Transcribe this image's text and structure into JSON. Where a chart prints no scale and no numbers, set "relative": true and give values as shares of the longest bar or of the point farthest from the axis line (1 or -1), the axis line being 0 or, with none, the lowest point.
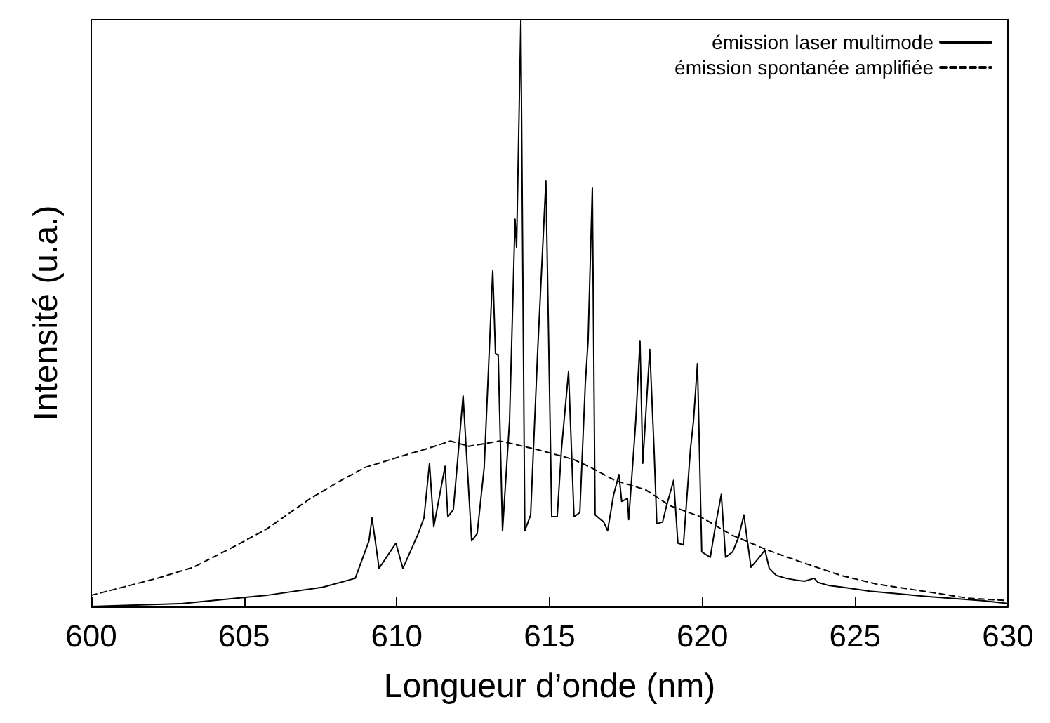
{
  "chart_data": {
    "type": "line",
    "xlabel": "Longueur d’onde (nm)",
    "ylabel": "Intensité (u.a.)",
    "relative": true,
    "xlim": [
      600,
      630
    ],
    "xticks": [
      600,
      605,
      610,
      615,
      620,
      625,
      630
    ],
    "grid": false,
    "legend": "top right",
    "marker": "none",
    "series": [
      {
        "name": "émission laser multimode",
        "color": "#000000",
        "line_style": "solid",
        "x": [
          600,
          603.0,
          605.74,
          607.58,
          608.64,
          609.09,
          609.19,
          609.42,
          609.97,
          610.2,
          610.7,
          610.89,
          611.07,
          611.21,
          611.58,
          611.67,
          611.85,
          611.99,
          612.17,
          612.45,
          612.63,
          612.86,
          613.14,
          613.23,
          613.32,
          613.46,
          613.69,
          613.87,
          613.92,
          614.06,
          614.19,
          614.38,
          614.61,
          614.88,
          615.07,
          615.25,
          615.39,
          615.62,
          615.8,
          615.99,
          616.17,
          616.26,
          616.4,
          616.49,
          616.77,
          616.9,
          617.09,
          617.27,
          617.36,
          617.55,
          617.59,
          617.78,
          617.82,
          617.96,
          618.05,
          618.28,
          618.42,
          618.51,
          618.7,
          618.83,
          619.06,
          619.2,
          619.38,
          619.61,
          619.71,
          619.84,
          619.98,
          620.26,
          620.44,
          620.62,
          620.76,
          620.99,
          621.18,
          621.36,
          621.59,
          621.82,
          622.05,
          622.19,
          622.42,
          622.74,
          623.06,
          623.34,
          623.66,
          623.79,
          624.12,
          624.58,
          625.49,
          627.33,
          629.17,
          630
        ],
        "values": [
          0,
          0.005,
          0.019,
          0.033,
          0.048,
          0.112,
          0.151,
          0.065,
          0.108,
          0.065,
          0.124,
          0.151,
          0.244,
          0.136,
          0.239,
          0.153,
          0.165,
          0.249,
          0.359,
          0.112,
          0.124,
          0.237,
          0.572,
          0.431,
          0.428,
          0.129,
          0.316,
          0.66,
          0.612,
          1.0,
          0.129,
          0.156,
          0.435,
          0.725,
          0.153,
          0.153,
          0.268,
          0.4,
          0.153,
          0.16,
          0.38,
          0.452,
          0.713,
          0.156,
          0.144,
          0.129,
          0.189,
          0.225,
          0.179,
          0.184,
          0.148,
          0.285,
          0.316,
          0.452,
          0.244,
          0.438,
          0.268,
          0.141,
          0.144,
          0.172,
          0.215,
          0.108,
          0.105,
          0.268,
          0.316,
          0.414,
          0.093,
          0.084,
          0.141,
          0.191,
          0.084,
          0.093,
          0.117,
          0.156,
          0.067,
          0.081,
          0.096,
          0.065,
          0.053,
          0.048,
          0.045,
          0.043,
          0.048,
          0.041,
          0.036,
          0.033,
          0.026,
          0.017,
          0.01,
          0.005
        ]
      },
      {
        "name": "émission spontanée amplifiée",
        "color": "#000000",
        "line_style": "dashed",
        "x": [
          600,
          602.16,
          603.35,
          604.78,
          605.74,
          607.17,
          608.18,
          608.96,
          610.15,
          610.93,
          611.76,
          612.36,
          613.37,
          614.56,
          615.76,
          616.35,
          617.13,
          618.14,
          618.93,
          619.94,
          620.95,
          622.14,
          623.33,
          624.53,
          625.72,
          627.74,
          628.71,
          630
        ],
        "values": [
          0.019,
          0.048,
          0.067,
          0.105,
          0.132,
          0.184,
          0.215,
          0.237,
          0.256,
          0.268,
          0.282,
          0.273,
          0.282,
          0.268,
          0.251,
          0.237,
          0.215,
          0.199,
          0.172,
          0.153,
          0.122,
          0.096,
          0.074,
          0.053,
          0.038,
          0.022,
          0.014,
          0.01
        ]
      }
    ]
  }
}
